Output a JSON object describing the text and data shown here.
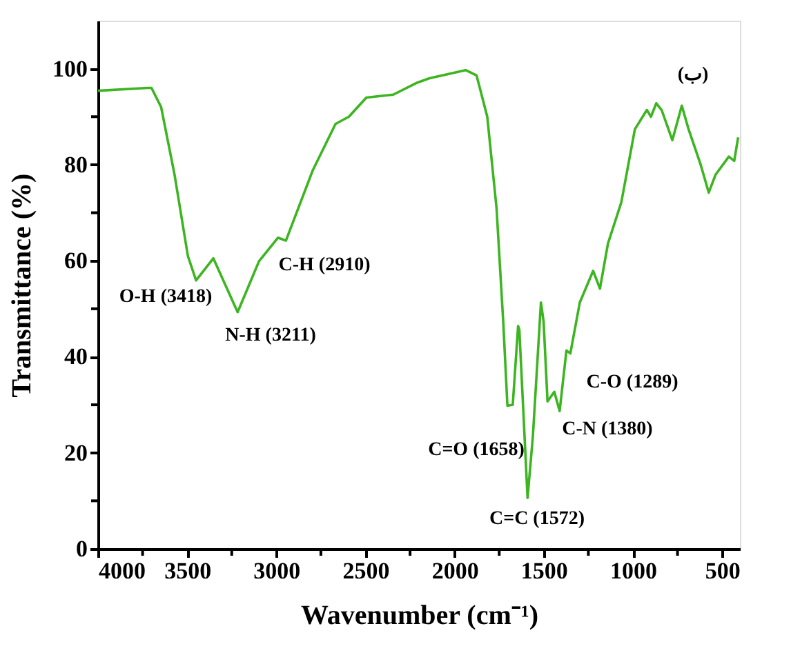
{
  "chart_data": {
    "type": "line",
    "xlabel": "Wavenumber (cm⁻¹)",
    "ylabel": "Transmittance (%)",
    "xlim": [
      4000,
      400
    ],
    "ylim": [
      0,
      110
    ],
    "xticks": [
      4000,
      {
        "value": 3750,
        "label": null
      },
      3500,
      {
        "value": 3250,
        "label": null
      },
      3000,
      {
        "value": 2750,
        "label": null
      },
      2500,
      {
        "value": 2250,
        "label": null
      },
      2000,
      {
        "value": 1750,
        "label": null
      },
      1500,
      {
        "value": 1250,
        "label": null
      },
      1000,
      {
        "value": 750,
        "label": null
      },
      500
    ],
    "yticks": [
      0,
      {
        "value": 10,
        "label": null
      },
      20,
      {
        "value": 30,
        "label": null
      },
      40,
      {
        "value": 50,
        "label": null
      },
      60,
      {
        "value": 70,
        "label": null
      },
      80,
      {
        "value": 90,
        "label": null
      },
      100
    ],
    "grid": false,
    "marker": "none",
    "line_style": "solid",
    "series": [
      {
        "color": "#3cb521",
        "x": [
          4000,
          3722,
          3700,
          3646,
          3571,
          3496,
          3450,
          3353,
          3217,
          3097,
          2991,
          2946,
          2796,
          2668,
          2593,
          2495,
          2344,
          2216,
          2141,
          1938,
          1877,
          1817,
          1765,
          1727,
          1704,
          1674,
          1644,
          1637,
          1591,
          1561,
          1516,
          1501,
          1479,
          1441,
          1411,
          1373,
          1351,
          1298,
          1223,
          1185,
          1140,
          1065,
          989,
          922,
          899,
          869,
          839,
          779,
          726,
          688,
          620,
          575,
          537,
          462,
          432,
          410
        ],
        "values": [
          95.4,
          96,
          96,
          92,
          78,
          61,
          55.9,
          60.5,
          49.3,
          59.9,
          64.8,
          64.2,
          78.8,
          88.5,
          90,
          94,
          94.6,
          97,
          98,
          99.7,
          98.6,
          90,
          71,
          47,
          29.8,
          30,
          46.4,
          45.6,
          10.6,
          23.5,
          51.3,
          47.3,
          30.7,
          32.7,
          28.7,
          41.3,
          40.7,
          51.3,
          57.9,
          54.2,
          63.6,
          72.2,
          87.4,
          91.4,
          90,
          92.8,
          91.4,
          85.1,
          92.3,
          87.4,
          80,
          74.2,
          77.9,
          81.7,
          80.8,
          85.7
        ]
      }
    ],
    "annotations": [
      "O-H (3418)",
      "N-H (3211)",
      "C-H (2910)",
      "C=O (1658)",
      "C=C (1572)",
      "C-N (1380)",
      "C-O (1289)",
      "(ب)"
    ]
  }
}
